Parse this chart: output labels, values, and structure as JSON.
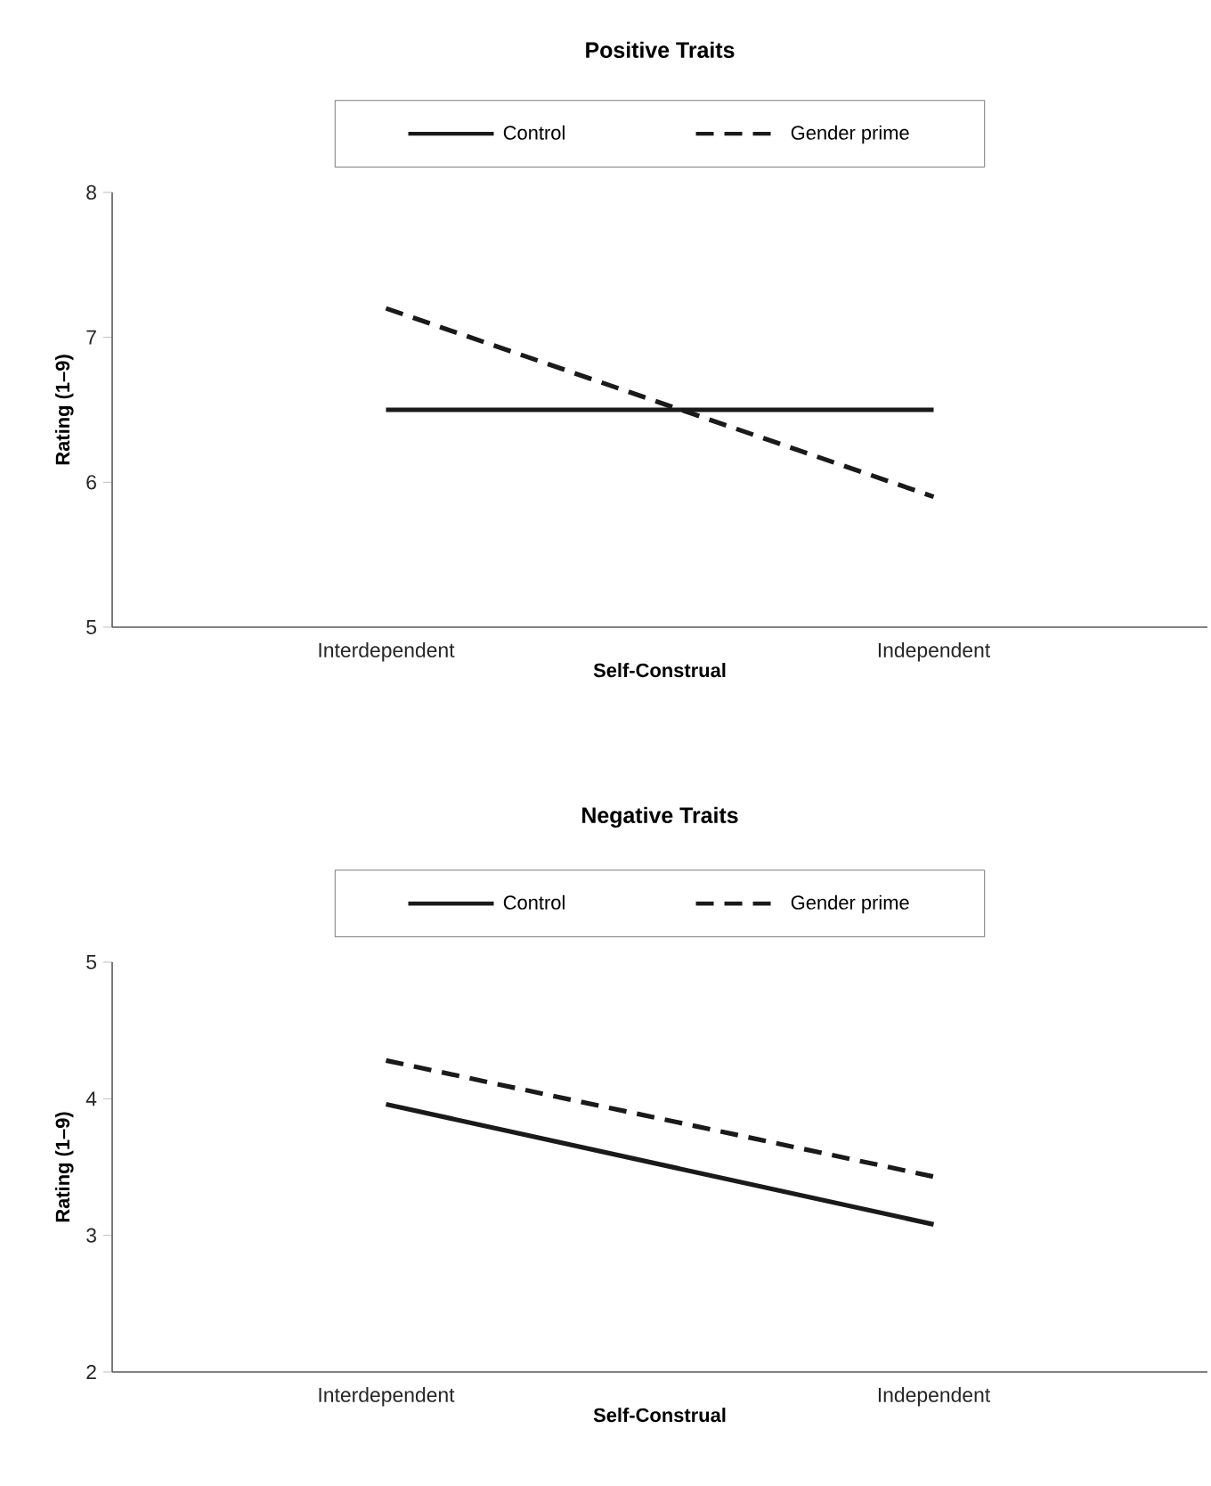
{
  "chart_data": [
    {
      "type": "line",
      "title": "Positive Traits",
      "xlabel": "Self-Construal",
      "ylabel": "Rating (1–9)",
      "categories": [
        "Interdependent",
        "Independent"
      ],
      "series": [
        {
          "name": "Control",
          "color": "#1a1a1a",
          "line_style": "solid",
          "values": [
            6.5,
            6.5
          ]
        },
        {
          "name": "Gender prime",
          "color": "#1a1a1a",
          "line_style": "dashed",
          "values": [
            7.2,
            5.9
          ]
        }
      ],
      "ylim": [
        5,
        8
      ],
      "yticks": [
        5,
        6,
        7,
        8
      ],
      "legend": "top"
    },
    {
      "type": "line",
      "title": "Negative Traits",
      "xlabel": "Self-Construal",
      "ylabel": "Rating (1–9)",
      "categories": [
        "Interdependent",
        "Independent"
      ],
      "series": [
        {
          "name": "Control",
          "color": "#1a1a1a",
          "line_style": "solid",
          "values": [
            3.96,
            3.08
          ]
        },
        {
          "name": "Gender prime",
          "color": "#1a1a1a",
          "line_style": "dashed",
          "values": [
            4.28,
            3.43
          ]
        }
      ],
      "ylim": [
        2,
        5
      ],
      "yticks": [
        2,
        3,
        4,
        5
      ],
      "legend": "top"
    }
  ]
}
